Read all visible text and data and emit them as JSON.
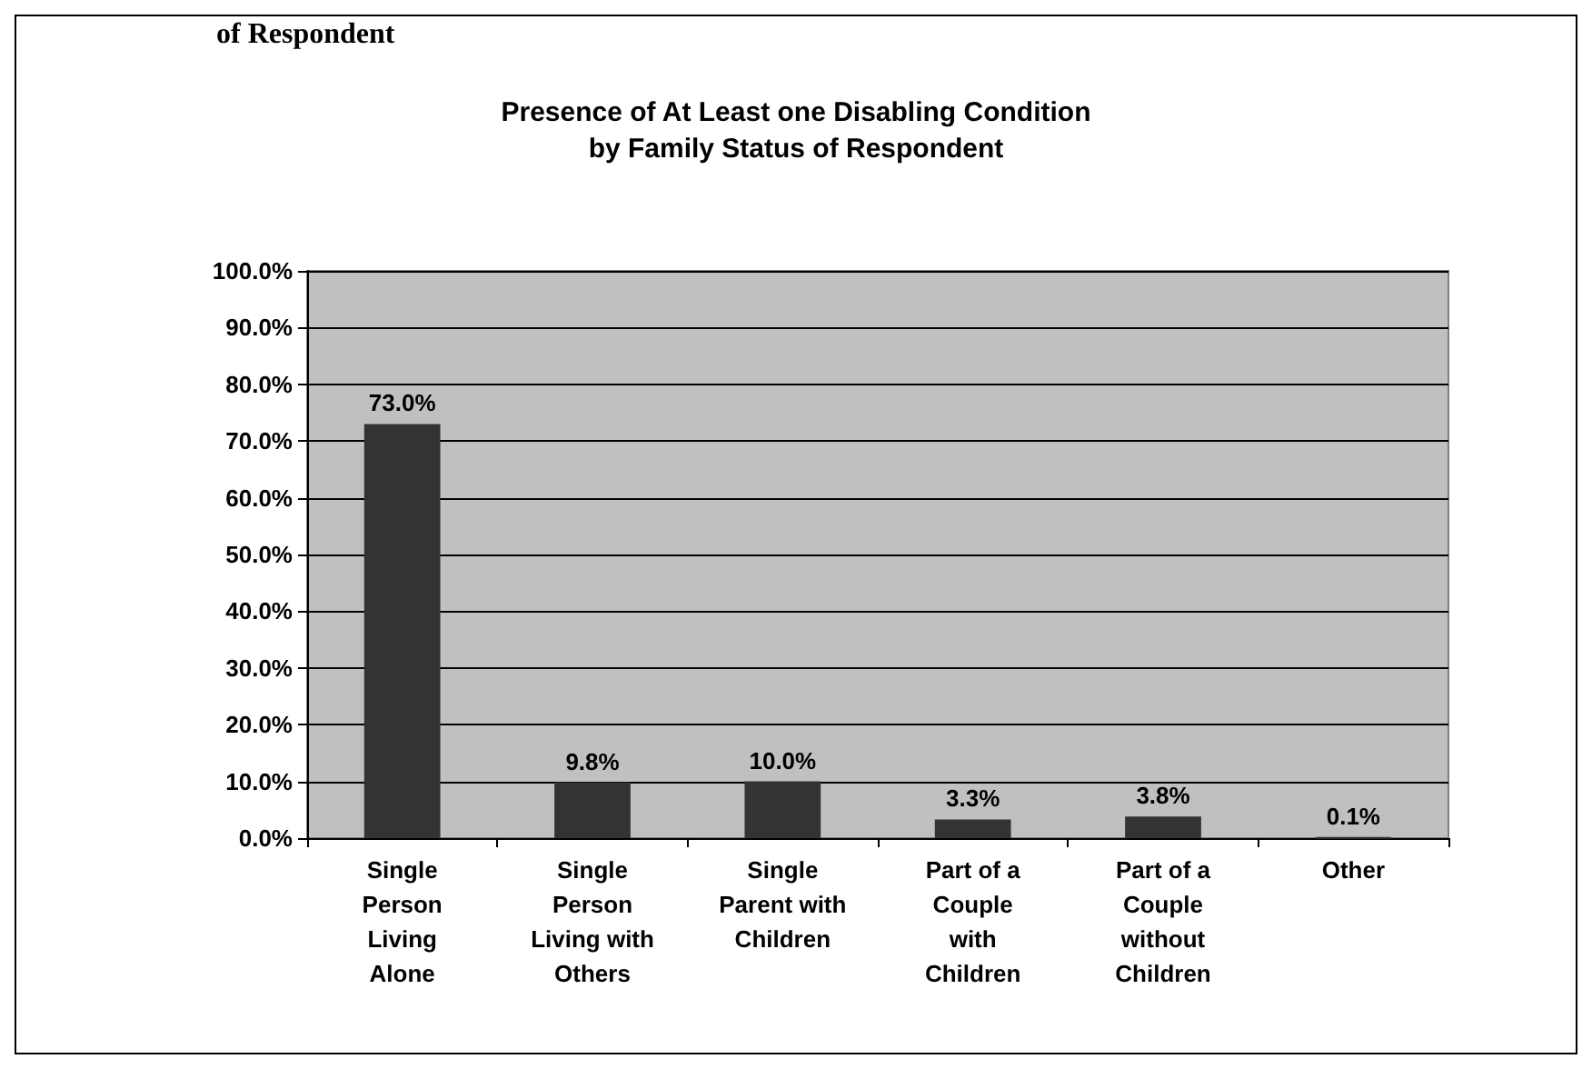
{
  "chart_data": {
    "type": "bar",
    "title": "Presence of At Least one Disabling Condition\nby Family Status of Respondent",
    "categories": [
      "Single\nPerson\nLiving\nAlone",
      "Single\nPerson\nLiving with\nOthers",
      "Single\nParent with\nChildren",
      "Part of a\nCouple\nwith\nChildren",
      "Part of a\nCouple\nwithout\nChildren",
      "Other"
    ],
    "values": [
      73.0,
      9.8,
      10.0,
      3.3,
      3.8,
      0.1
    ],
    "color": "#333333",
    "ylim": [
      0,
      100
    ],
    "yticks": [
      {
        "value": 0,
        "label": "0.0%"
      },
      {
        "value": 10,
        "label": "10.0%"
      },
      {
        "value": 20,
        "label": "20.0%"
      },
      {
        "value": 30,
        "label": "30.0%"
      },
      {
        "value": 40,
        "label": "40.0%"
      },
      {
        "value": 50,
        "label": "50.0%"
      },
      {
        "value": 60,
        "label": "60.0%"
      },
      {
        "value": 70,
        "label": "70.0%"
      },
      {
        "value": 80,
        "label": "80.0%"
      },
      {
        "value": 90,
        "label": "90.0%"
      },
      {
        "value": 100,
        "label": "100.0%"
      }
    ],
    "value_labels": [
      "73.0%",
      "9.8%",
      "10.0%",
      "3.3%",
      "3.8%",
      "0.1%"
    ],
    "grid": "y",
    "annotations": [
      "of Respondent"
    ]
  }
}
